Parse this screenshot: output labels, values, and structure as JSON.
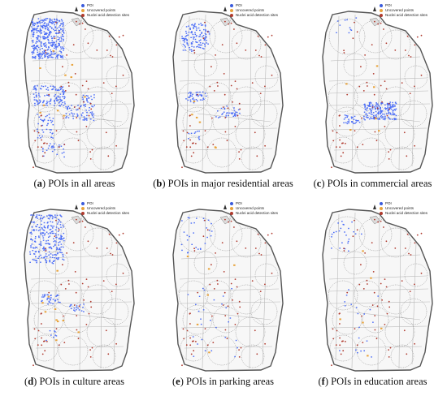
{
  "legend": {
    "items": [
      {
        "label": "POI",
        "color": "#3b5bdb"
      },
      {
        "label": "Uncovered points",
        "color": "#e8a33c"
      },
      {
        "label": "Nuclei acid detection sites",
        "color": "#b03a2e"
      }
    ]
  },
  "colors": {
    "poi": "#4a6cf7",
    "uncovered": "#e8a33c",
    "site": "#b03a2e",
    "boundary": "#555555",
    "road": "#b9b9b9",
    "coverage": "#8a8a8a"
  },
  "panels": [
    {
      "letter": "a",
      "caption": " POIs in all areas",
      "poi_density": "high-all"
    },
    {
      "letter": "b",
      "caption": " POIs in major residential areas",
      "poi_density": "residential"
    },
    {
      "letter": "c",
      "caption": " POIs in commercial areas",
      "poi_density": "commercial"
    },
    {
      "letter": "d",
      "caption": " POIs in culture areas",
      "poi_density": "culture"
    },
    {
      "letter": "e",
      "caption": " POIs in parking areas",
      "poi_density": "parking"
    },
    {
      "letter": "f",
      "caption": " POIs in education areas",
      "poi_density": "education"
    }
  ]
}
